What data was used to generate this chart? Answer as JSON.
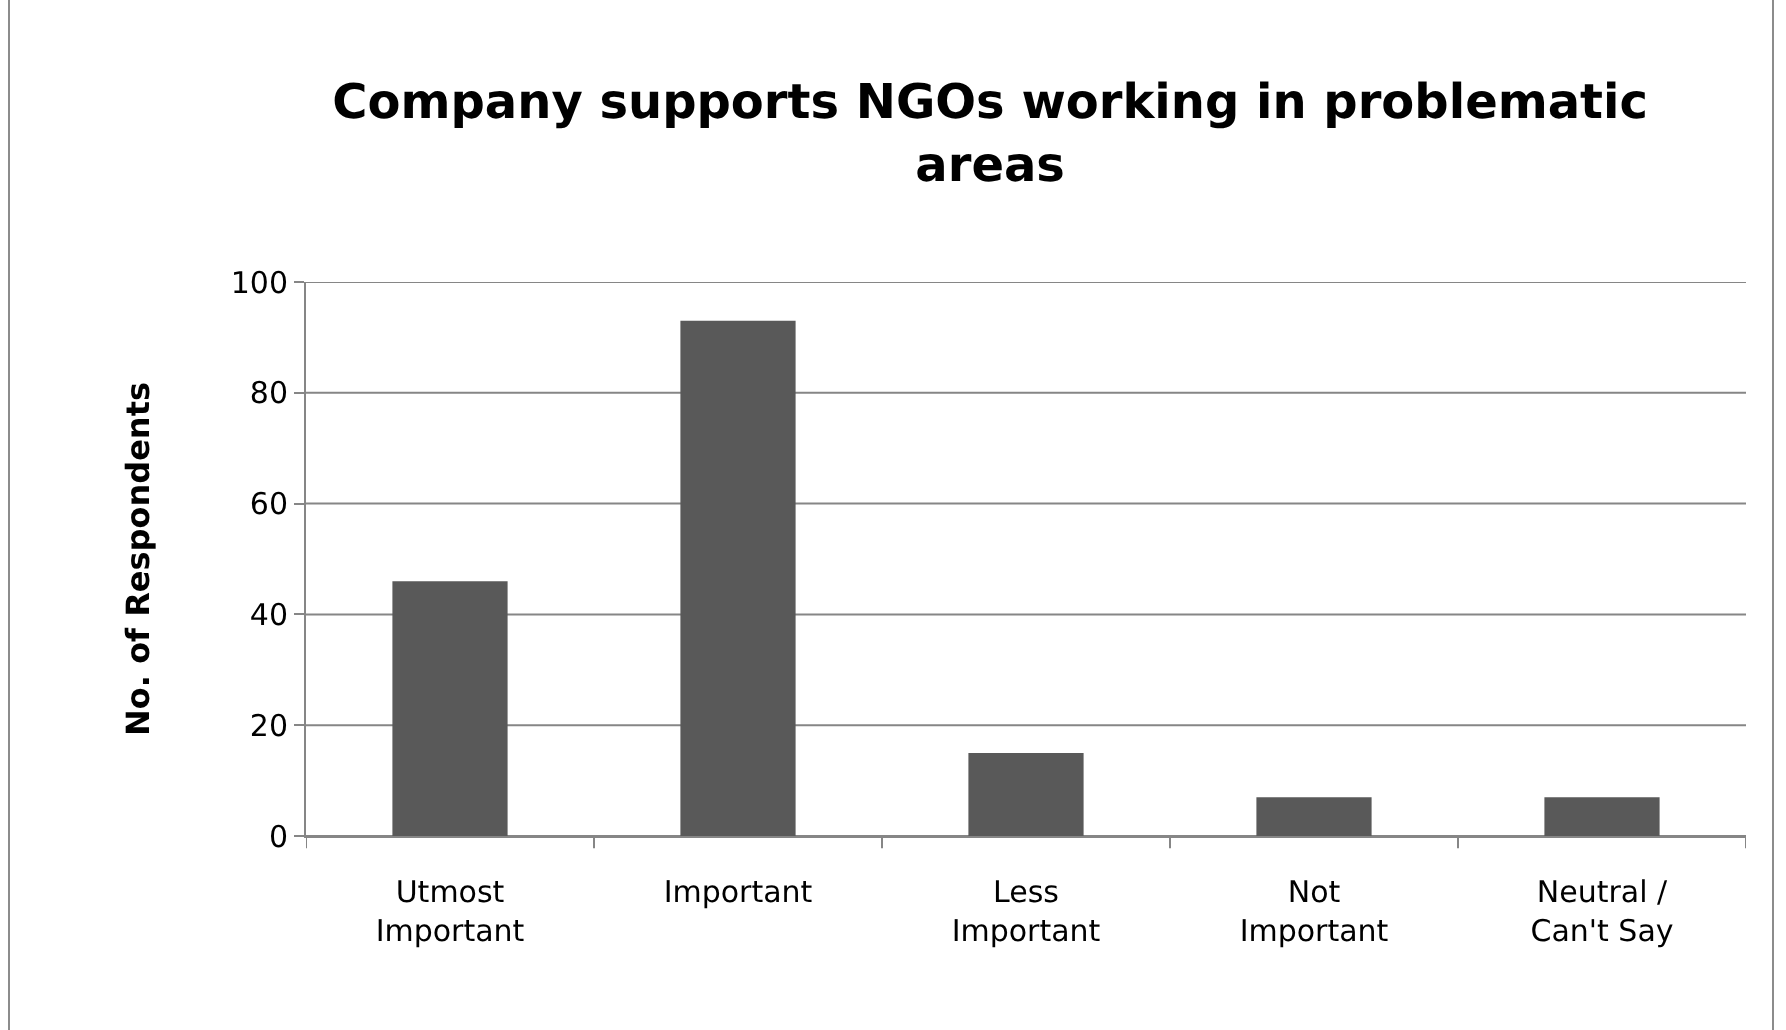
{
  "chart_data": {
    "type": "bar",
    "title": "Company supports NGOs working in problematic areas",
    "ylabel": "No. of Respondents",
    "categories": [
      "Utmost Important",
      "Important",
      "Less Important",
      "Not Important",
      "Neutral / Can't Say"
    ],
    "values": [
      46,
      93,
      15,
      7,
      7
    ],
    "color": "#595959",
    "ylim": [
      0,
      100
    ],
    "yticks": [
      0,
      20,
      40,
      60,
      80,
      100
    ],
    "grid": "y"
  }
}
